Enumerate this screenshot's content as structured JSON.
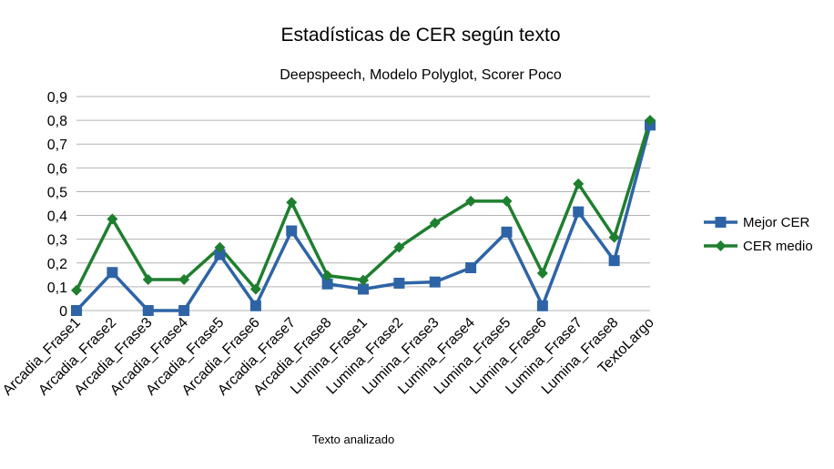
{
  "chart_data": {
    "type": "line",
    "title": "Estadísticas de CER según texto",
    "subtitle": "Deepspeech, Modelo Polyglot, Scorer Poco",
    "xlabel": "Texto analizado",
    "ylabel": "",
    "categories": [
      "Arcadia_Frase1",
      "Arcadia_Frase2",
      "Arcadia_Frase3",
      "Arcadia_Frase4",
      "Arcadia_Frase5",
      "Arcadia_Frase6",
      "Arcadia_Frase7",
      "Arcadia_Frase8",
      "Lumina_Frase1",
      "Lumina_Frase2",
      "Lumina_Frase3",
      "Lumina_Frase4",
      "Lumina_Frase5",
      "Lumina_Frase6",
      "Lumina_Frase7",
      "Lumina_Frase8",
      "TextoLargo"
    ],
    "ylim": [
      0,
      0.9
    ],
    "yticks": [
      "0",
      "0,1",
      "0,2",
      "0,3",
      "0,4",
      "0,5",
      "0,6",
      "0,7",
      "0,8",
      "0,9"
    ],
    "grid": true,
    "legend_position": "right",
    "series": [
      {
        "name": "Mejor CER",
        "color": "#2e64a6",
        "marker": "square",
        "values": [
          0.0,
          0.16,
          0.0,
          0.0,
          0.235,
          0.02,
          0.335,
          0.112,
          0.09,
          0.115,
          0.12,
          0.18,
          0.33,
          0.02,
          0.415,
          0.21,
          0.78
        ]
      },
      {
        "name": "CER medio",
        "color": "#1e7f2e",
        "marker": "diamond",
        "values": [
          0.085,
          0.385,
          0.13,
          0.13,
          0.265,
          0.09,
          0.455,
          0.147,
          0.128,
          0.266,
          0.368,
          0.46,
          0.46,
          0.157,
          0.533,
          0.308,
          0.8
        ]
      }
    ]
  }
}
